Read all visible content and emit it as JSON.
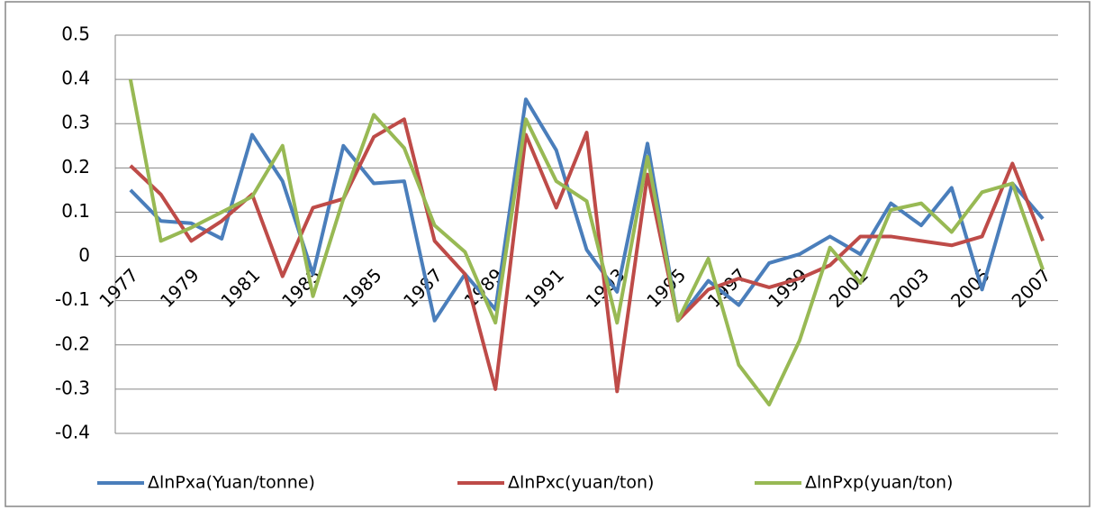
{
  "chart_data": {
    "type": "line",
    "categories": [
      "1977",
      null,
      "1979",
      null,
      "1981",
      null,
      "1983",
      null,
      "1985",
      null,
      "1987",
      null,
      "1989",
      null,
      "1991",
      null,
      "1993",
      null,
      "1995",
      null,
      "1997",
      null,
      "1999",
      null,
      "2001",
      null,
      "2003",
      null,
      "2005",
      null,
      "2007"
    ],
    "series": [
      {
        "name": "ΔlnPxa(Yuan/tonne)",
        "color": "#4a7ebb",
        "values": [
          0.15,
          0.08,
          0.075,
          0.04,
          0.275,
          0.17,
          -0.04,
          0.25,
          0.165,
          0.17,
          -0.145,
          -0.04,
          -0.12,
          0.355,
          0.24,
          0.015,
          -0.08,
          0.255,
          -0.145,
          -0.055,
          -0.11,
          -0.015,
          0.005,
          0.045,
          0.005,
          0.12,
          0.07,
          0.155,
          -0.075,
          0.165,
          0.085
        ]
      },
      {
        "name": "ΔlnPxc(yuan/ton)",
        "color": "#be4b48",
        "values": [
          0.205,
          0.14,
          0.035,
          0.08,
          0.14,
          -0.045,
          0.11,
          0.13,
          0.27,
          0.31,
          0.035,
          -0.04,
          -0.3,
          0.275,
          0.11,
          0.28,
          -0.305,
          0.185,
          -0.145,
          -0.075,
          -0.05,
          -0.07,
          -0.05,
          -0.02,
          0.045,
          0.045,
          0.035,
          0.025,
          0.045,
          0.21,
          0.035
        ]
      },
      {
        "name": "ΔlnPxp(yuan/ton)",
        "color": "#98b954",
        "values": [
          0.4,
          0.035,
          0.065,
          0.1,
          0.135,
          0.25,
          -0.09,
          0.13,
          0.32,
          0.245,
          0.07,
          0.01,
          -0.15,
          0.31,
          0.17,
          0.125,
          -0.15,
          0.225,
          -0.145,
          -0.005,
          -0.245,
          -0.335,
          -0.19,
          0.02,
          -0.06,
          0.105,
          0.12,
          0.055,
          0.145,
          0.165,
          -0.03
        ]
      }
    ],
    "ylim": [
      -0.4,
      0.5
    ],
    "yticks": [
      -0.4,
      -0.3,
      -0.2,
      -0.1,
      0,
      0.1,
      0.2,
      0.3,
      0.4,
      0.5
    ],
    "grid": true,
    "legend": "bottom"
  }
}
